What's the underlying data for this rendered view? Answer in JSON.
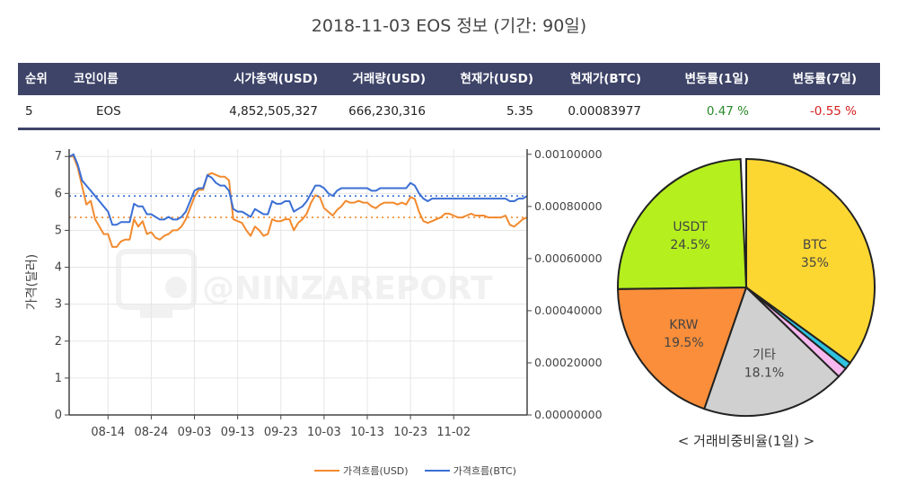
{
  "title": "2018-11-03 EOS 정보 (기간: 90일)",
  "table": {
    "headers": [
      "순위",
      "코인이름",
      "시가총액(USD)",
      "거래량(USD)",
      "현재가(USD)",
      "현재가(BTC)",
      "변동률(1일)",
      "변동률(7일)"
    ],
    "row": [
      "5",
      "EOS",
      "4,852,505,327",
      "666,230,316",
      "5.35",
      "0.00083977",
      "0.47 %",
      "-0.55 %"
    ]
  },
  "watermark": "@NINZAREPORT",
  "pie_caption": "< 거래비중비율(1일) >",
  "colors": {
    "usd": "#f28a2e",
    "btc": "#3b6fd4",
    "header": "#3e4468"
  },
  "chart_data": [
    {
      "type": "line",
      "ylabel": "가격(달러)",
      "y_ticks": [
        "0",
        "1",
        "2",
        "3",
        "4",
        "5",
        "6",
        "7"
      ],
      "y2_ticks": [
        "0.00000000",
        "0.00020000",
        "0.00040000",
        "0.00060000",
        "0.00080000",
        "0.00100000"
      ],
      "x_ticks": [
        "08-14",
        "08-24",
        "09-03",
        "09-13",
        "09-23",
        "10-03",
        "10-13",
        "10-23",
        "11-02"
      ],
      "ylim": [
        0,
        7.2
      ],
      "y2lim": [
        0,
        0.00102
      ],
      "x_start": "08-05",
      "x_end": "11-03",
      "grid": true,
      "legend": "bottom",
      "series": [
        {
          "name": "가격흐름(USD)",
          "axis": "left",
          "mean": 5.35,
          "values": [
            7.0,
            7.0,
            6.7,
            6.2,
            5.7,
            5.8,
            5.3,
            5.1,
            4.9,
            4.9,
            4.55,
            4.55,
            4.7,
            4.75,
            4.75,
            5.3,
            5.1,
            5.25,
            4.9,
            4.95,
            4.8,
            4.75,
            4.85,
            4.9,
            5.0,
            5.0,
            5.1,
            5.3,
            5.6,
            5.9,
            6.1,
            6.1,
            6.5,
            6.55,
            6.5,
            6.45,
            6.45,
            6.35,
            5.3,
            5.25,
            5.2,
            5.0,
            4.85,
            5.1,
            5.0,
            4.85,
            4.9,
            5.3,
            5.25,
            5.25,
            5.3,
            5.3,
            5.0,
            5.2,
            5.3,
            5.45,
            5.75,
            5.95,
            5.9,
            5.6,
            5.5,
            5.4,
            5.55,
            5.65,
            5.8,
            5.75,
            5.75,
            5.8,
            5.75,
            5.75,
            5.65,
            5.6,
            5.7,
            5.75,
            5.75,
            5.75,
            5.7,
            5.75,
            5.7,
            5.9,
            5.85,
            5.5,
            5.25,
            5.2,
            5.25,
            5.3,
            5.35,
            5.45,
            5.45,
            5.4,
            5.35,
            5.35,
            5.4,
            5.45,
            5.4,
            5.4,
            5.4,
            5.35,
            5.35,
            5.35,
            5.35,
            5.4,
            5.15,
            5.1,
            5.2,
            5.3,
            5.35
          ]
        },
        {
          "name": "가격흐름(BTC)",
          "axis": "right",
          "mean": 0.00084,
          "values": [
            0.00099,
            0.001,
            0.00096,
            0.0009,
            0.00088,
            0.00086,
            0.00084,
            0.00082,
            0.0008,
            0.00078,
            0.00073,
            0.00073,
            0.00074,
            0.00074,
            0.00074,
            0.00081,
            0.0008,
            0.0008,
            0.00077,
            0.00077,
            0.00076,
            0.00075,
            0.00075,
            0.00076,
            0.00075,
            0.00075,
            0.00076,
            0.00078,
            0.00082,
            0.00086,
            0.00087,
            0.00087,
            0.00092,
            0.00091,
            0.00089,
            0.00088,
            0.00088,
            0.00086,
            0.00079,
            0.00078,
            0.00078,
            0.00077,
            0.00076,
            0.00079,
            0.00078,
            0.00077,
            0.00077,
            0.00082,
            0.00081,
            0.00081,
            0.00082,
            0.00082,
            0.00078,
            0.00079,
            0.0008,
            0.00082,
            0.00085,
            0.00088,
            0.00088,
            0.00087,
            0.00085,
            0.00084,
            0.00086,
            0.00087,
            0.00087,
            0.00087,
            0.00087,
            0.00087,
            0.00087,
            0.00087,
            0.00086,
            0.00086,
            0.00087,
            0.00087,
            0.00087,
            0.00087,
            0.00087,
            0.00087,
            0.00087,
            0.00089,
            0.00088,
            0.00085,
            0.00083,
            0.00082,
            0.00083,
            0.00083,
            0.00083,
            0.00083,
            0.00083,
            0.00083,
            0.00083,
            0.00083,
            0.00083,
            0.00083,
            0.00083,
            0.00083,
            0.00083,
            0.00083,
            0.00083,
            0.00083,
            0.00083,
            0.00083,
            0.00082,
            0.00082,
            0.00083,
            0.00083,
            0.00084
          ]
        }
      ]
    },
    {
      "type": "pie",
      "slices": [
        {
          "label": "BTC",
          "pct": 35.0,
          "pct_label": "35%",
          "color": "#fdd731"
        },
        {
          "label": "",
          "pct": 0.9,
          "pct_label": "",
          "color": "#2fc3e0"
        },
        {
          "label": "",
          "pct": 1.3,
          "pct_label": "",
          "color": "#f7b8ef"
        },
        {
          "label": "기타",
          "pct": 18.1,
          "pct_label": "18.1%",
          "color": "#d0d0d0"
        },
        {
          "label": "KRW",
          "pct": 19.5,
          "pct_label": "19.5%",
          "color": "#fb8e3a"
        },
        {
          "label": "USDT",
          "pct": 24.5,
          "pct_label": "24.5%",
          "color": "#b5ef1e"
        }
      ]
    }
  ]
}
